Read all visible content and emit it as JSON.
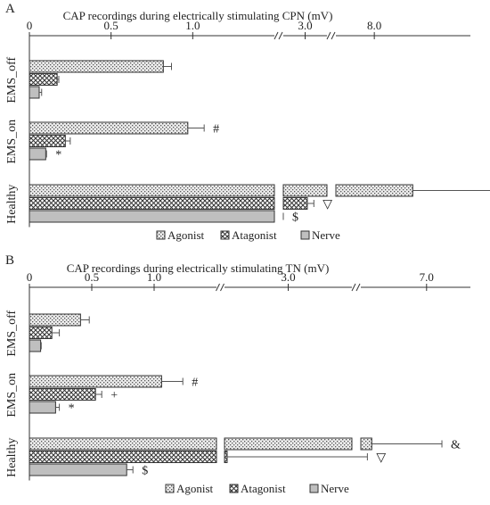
{
  "colors": {
    "axis": "#333333",
    "bar_stroke": "#333333",
    "nerve_fill": "#bfbfbf",
    "agonist_fill": "#e6e6e6",
    "background": "#ffffff"
  },
  "chart_data": [
    {
      "panel_label": "A",
      "type": "bar",
      "orientation": "horizontal",
      "title": "CAP recordings during electrically  stimulating CPN (mV)",
      "axis": {
        "scale": "broken",
        "segments": [
          {
            "from": 0,
            "to": 1.5,
            "ticks": [
              0,
              0.5,
              1.0
            ],
            "tick_labels": [
              "0",
              "0.5",
              "1.0"
            ]
          },
          {
            "from": 2.5,
            "to": 3.5,
            "ticks": [
              3.0
            ],
            "tick_labels": [
              "3.0"
            ]
          },
          {
            "from": 7.0,
            "to": 10.5,
            "ticks": [
              8.0
            ],
            "tick_labels": [
              "8.0"
            ]
          }
        ]
      },
      "groups": [
        "EMS_off",
        "EMS_on",
        "Healthy"
      ],
      "series": [
        {
          "name": "Agonist",
          "pattern": "dots",
          "values": [
            0.82,
            0.97,
            9.0
          ],
          "errors": [
            0.05,
            0.1,
            2.6
          ]
        },
        {
          "name": "Atagonist",
          "pattern": "crosshatch",
          "values": [
            0.17,
            0.22,
            3.05
          ],
          "errors": [
            0.01,
            0.03,
            0.15
          ]
        },
        {
          "name": "Nerve",
          "pattern": "solid-gray",
          "values": [
            0.06,
            0.1,
            1.57
          ],
          "errors": [
            0.015,
            0.005,
            0.08
          ]
        }
      ],
      "annotations": [
        {
          "group": "EMS_on",
          "series": "Agonist",
          "text": "#"
        },
        {
          "group": "EMS_on",
          "series": "Nerve",
          "text": "*"
        },
        {
          "group": "Healthy",
          "series": "Agonist",
          "text": "&"
        },
        {
          "group": "Healthy",
          "series": "Atagonist",
          "text": "▽"
        },
        {
          "group": "Healthy",
          "series": "Nerve",
          "text": "$"
        }
      ],
      "legend": [
        "Agonist",
        "Atagonist",
        "Nerve"
      ],
      "legend_position": "bottom"
    },
    {
      "panel_label": "B",
      "type": "bar",
      "orientation": "horizontal",
      "title": "CAP recordings during electrically  stimulating TN (mV)",
      "axis": {
        "scale": "broken",
        "segments": [
          {
            "from": 0,
            "to": 1.5,
            "ticks": [
              0,
              0.5,
              1.0
            ],
            "tick_labels": [
              "0",
              "0.5",
              "1.0"
            ]
          },
          {
            "from": 1.8,
            "to": 4.2,
            "ticks": [
              3.0
            ],
            "tick_labels": [
              "3.0"
            ]
          },
          {
            "from": 5.5,
            "to": 8.0,
            "ticks": [
              7.0
            ],
            "tick_labels": [
              "7.0"
            ]
          }
        ]
      },
      "groups": [
        "EMS_off",
        "EMS_on",
        "Healthy"
      ],
      "series": [
        {
          "name": "Agonist",
          "pattern": "dots",
          "values": [
            0.41,
            1.06,
            5.75
          ],
          "errors": [
            0.07,
            0.17,
            1.6
          ]
        },
        {
          "name": "Atagonist",
          "pattern": "crosshatch",
          "values": [
            0.18,
            0.53,
            1.85
          ],
          "errors": [
            0.06,
            0.05,
            3.8
          ]
        },
        {
          "name": "Nerve",
          "pattern": "solid-gray",
          "values": [
            0.09,
            0.21,
            0.78
          ],
          "errors": [
            0.005,
            0.03,
            0.05
          ]
        }
      ],
      "annotations": [
        {
          "group": "EMS_on",
          "series": "Agonist",
          "text": "#"
        },
        {
          "group": "EMS_on",
          "series": "Atagonist",
          "text": "+"
        },
        {
          "group": "EMS_on",
          "series": "Nerve",
          "text": "*"
        },
        {
          "group": "Healthy",
          "series": "Agonist",
          "text": "&"
        },
        {
          "group": "Healthy",
          "series": "Atagonist",
          "text": "▽"
        },
        {
          "group": "Healthy",
          "series": "Nerve",
          "text": "$"
        }
      ],
      "legend": [
        "Agonist",
        "Atagonist",
        "Nerve"
      ],
      "legend_position": "bottom"
    }
  ]
}
